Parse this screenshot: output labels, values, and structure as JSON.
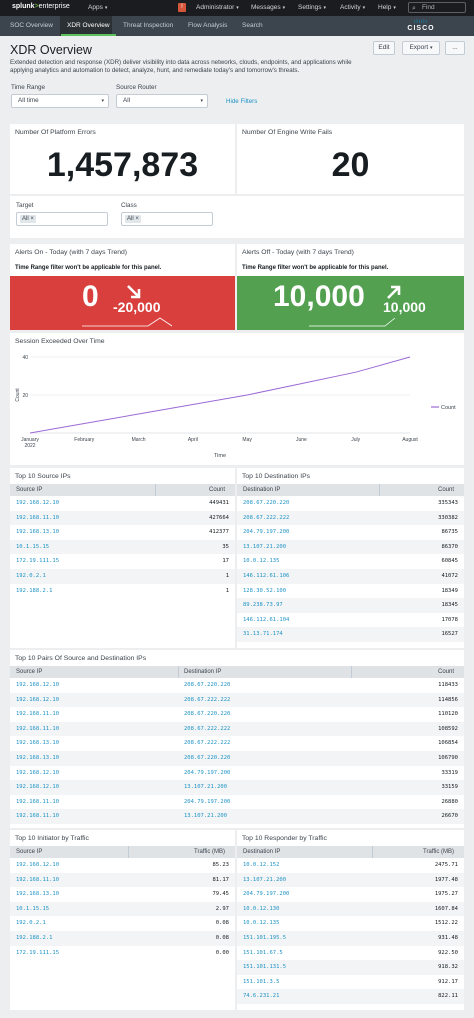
{
  "topbar": {
    "logo_main": "splunk",
    "logo_gt": ">",
    "logo_sub": "enterprise",
    "apps": "Apps",
    "badge": "!",
    "administrator": "Administrator",
    "messages": "Messages",
    "settings": "Settings",
    "activity": "Activity",
    "help": "Help",
    "find": "Find"
  },
  "appbar": {
    "tabs": [
      "SOC Overview",
      "XDR Overview",
      "Threat Inspection",
      "Flow Analysis",
      "Search"
    ],
    "active_tab": "XDR Overview",
    "brand": "CISCO"
  },
  "header": {
    "title": "XDR Overview",
    "description": "Extended detection and response (XDR) deliver visibility into data across networks, clouds, endpoints, and applications while applying analytics and automation to detect, analyze, hunt, and remediate today's and tomorrow's threats.",
    "edit": "Edit",
    "export": "Export",
    "more": "..."
  },
  "filters": {
    "time_range_label": "Time Range",
    "time_range_value": "All time",
    "source_router_label": "Source Router",
    "source_router_value": "All",
    "hide_filters": "Hide Filters",
    "target_label": "Target",
    "target_value": "All",
    "class_label": "Class",
    "class_value": "All"
  },
  "kpis": {
    "platform_errors_title": "Number Of Platform Errors",
    "platform_errors_value": "1,457,873",
    "engine_fails_title": "Number Of Engine Write Fails",
    "engine_fails_value": "20"
  },
  "alerts": {
    "on_title": "Alerts On - Today (with 7 days Trend)",
    "off_title": "Alerts Off - Today (with 7 days Trend)",
    "note": "Time Range filter won't be applicable for this panel.",
    "on_value": "0",
    "on_delta": "-20,000",
    "on_color": "#d93f3c",
    "off_value": "10,000",
    "off_delta": "10,000",
    "off_color": "#53a051"
  },
  "session_chart": {
    "title": "Session Exceeded Over Time",
    "xlabel": "Time",
    "ylabel": "Count",
    "legend": "Count",
    "line_color": "#9c6ad6",
    "chart_data": {
      "type": "line",
      "x": [
        "January 2022",
        "February",
        "March",
        "April",
        "May",
        "June",
        "July",
        "August"
      ],
      "series": [
        {
          "name": "Count",
          "values": [
            0,
            5,
            10,
            15,
            20,
            26,
            32,
            40
          ]
        }
      ],
      "ylim": [
        0,
        40
      ],
      "yticks": [
        "40",
        "20"
      ],
      "xlabel": "Time",
      "ylabel": "Count",
      "legend_position": "right"
    }
  },
  "src_ips": {
    "title": "Top 10 Source IPs",
    "col1": "Source IP",
    "col2": "Count",
    "rows": [
      [
        "192.168.12.10",
        "449431"
      ],
      [
        "192.168.11.10",
        "427664"
      ],
      [
        "192.168.13.10",
        "412377"
      ],
      [
        "10.1.15.15",
        "35"
      ],
      [
        "172.19.111.15",
        "17"
      ],
      [
        "192.0.2.1",
        "1"
      ],
      [
        "192.188.2.1",
        "1"
      ]
    ]
  },
  "dst_ips": {
    "title": "Top 10 Destination IPs",
    "col1": "Destination IP",
    "col2": "Count",
    "rows": [
      [
        "208.67.220.220",
        "335343"
      ],
      [
        "208.67.222.222",
        "330382"
      ],
      [
        "204.79.197.200",
        "86735"
      ],
      [
        "13.107.21.200",
        "86370"
      ],
      [
        "10.0.12.135",
        "60845"
      ],
      [
        "146.112.61.106",
        "41072"
      ],
      [
        "128.30.52.100",
        "18349"
      ],
      [
        "89.238.73.97",
        "18345"
      ],
      [
        "146.112.61.104",
        "17078"
      ],
      [
        "31.13.71.174",
        "16527"
      ]
    ]
  },
  "pairs": {
    "title": "Top 10 Pairs Of Source and Destination IPs",
    "col1": "Source IP",
    "col2": "Destination IP",
    "col3": "Count",
    "rows": [
      [
        "192.168.12.10",
        "208.67.220.220",
        "118433"
      ],
      [
        "192.168.12.10",
        "208.67.222.222",
        "114856"
      ],
      [
        "192.168.11.10",
        "208.67.220.220",
        "110120"
      ],
      [
        "192.168.11.10",
        "208.67.222.222",
        "108592"
      ],
      [
        "192.168.13.10",
        "208.67.222.222",
        "106854"
      ],
      [
        "192.168.13.10",
        "208.67.220.220",
        "106790"
      ],
      [
        "192.168.12.10",
        "204.79.197.200",
        "33319"
      ],
      [
        "192.168.12.10",
        "13.107.21.200",
        "33159"
      ],
      [
        "192.168.11.10",
        "204.79.197.200",
        "26880"
      ],
      [
        "192.168.11.10",
        "13.107.21.200",
        "26670"
      ]
    ]
  },
  "initiator": {
    "title": "Top 10 Initiator by Traffic",
    "col1": "Source IP",
    "col2": "Traffic (MB)",
    "rows": [
      [
        "192.168.12.10",
        "85.23"
      ],
      [
        "192.168.11.10",
        "81.17"
      ],
      [
        "192.168.13.10",
        "79.45"
      ],
      [
        "10.1.15.15",
        "2.97"
      ],
      [
        "192.0.2.1",
        "0.08"
      ],
      [
        "192.188.2.1",
        "0.08"
      ],
      [
        "172.19.111.15",
        "0.00"
      ]
    ]
  },
  "responder": {
    "title": "Top 10 Responder by Traffic",
    "col1": "Destination IP",
    "col2": "Traffic (MB)",
    "rows": [
      [
        "10.0.12.152",
        "2475.71"
      ],
      [
        "13.107.21.200",
        "1977.48"
      ],
      [
        "204.79.197.200",
        "1975.27"
      ],
      [
        "10.0.12.130",
        "1607.84"
      ],
      [
        "10.0.12.135",
        "1512.22"
      ],
      [
        "151.101.195.5",
        "931.48"
      ],
      [
        "151.101.67.5",
        "922.50"
      ],
      [
        "151.101.131.5",
        "918.32"
      ],
      [
        "151.101.3.5",
        "912.17"
      ],
      [
        "74.6.231.21",
        "822.11"
      ]
    ]
  }
}
